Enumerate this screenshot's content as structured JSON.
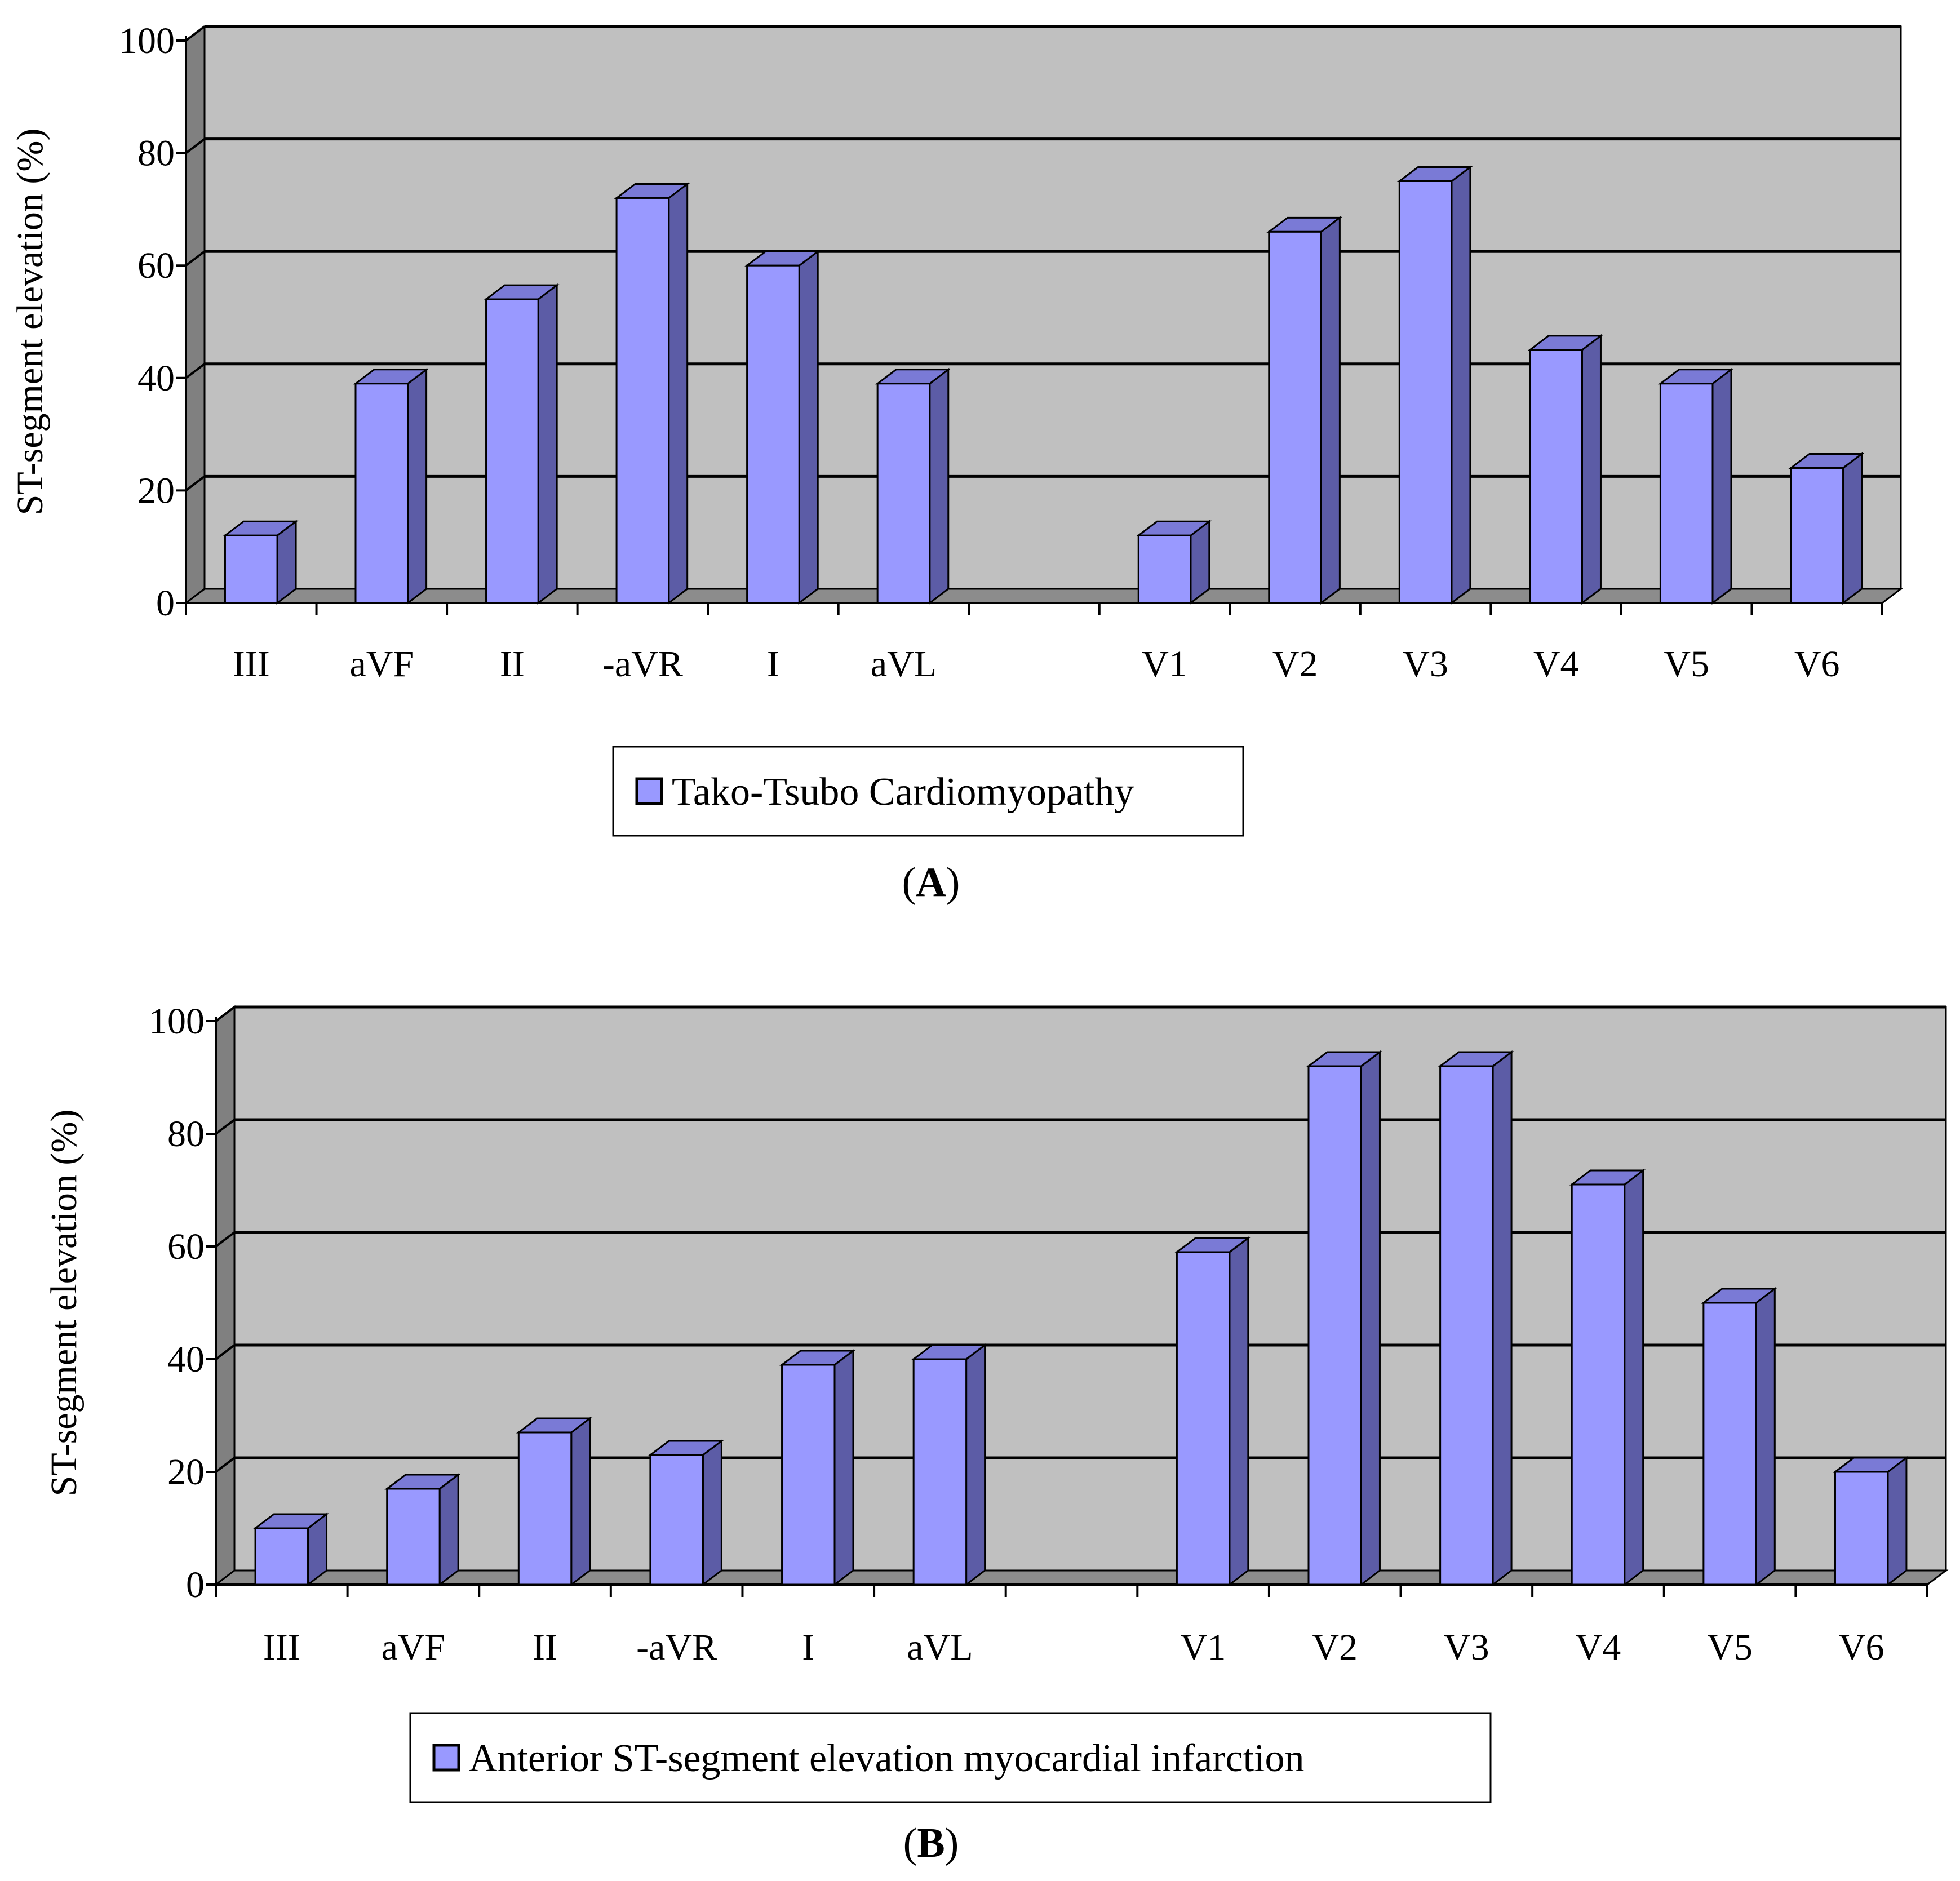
{
  "chart_data": [
    {
      "type": "bar",
      "panel": "A",
      "panel_label": {
        "open": "(",
        "letter": "A",
        "close": ")"
      },
      "categories": [
        "III",
        "aVF",
        "II",
        "-aVR",
        "I",
        "aVL",
        "",
        "V1",
        "V2",
        "V3",
        "V4",
        "V5",
        "V6"
      ],
      "series": [
        {
          "name": "Tako-Tsubo Cardiomyopathy",
          "values": [
            12,
            39,
            54,
            72,
            60,
            39,
            null,
            12,
            66,
            75,
            45,
            39,
            24
          ]
        }
      ],
      "ylabel": "ST-segment elevation (%)",
      "ylim": [
        0,
        100
      ],
      "yticks": [
        0,
        20,
        40,
        60,
        80,
        100
      ],
      "grid": true,
      "legend_position": "bottom-center",
      "colors": {
        "bar_front": "#9999ff",
        "bar_side": "#5c5ca6",
        "bar_top": "#7a7ad6",
        "plot_wall": "#c0c0c0",
        "plot_side_wall": "#808080",
        "plot_floor": "#8c8c8c"
      }
    },
    {
      "type": "bar",
      "panel": "B",
      "panel_label": {
        "open": "(",
        "letter": "B",
        "close": ")"
      },
      "categories": [
        "III",
        "aVF",
        "II",
        "-aVR",
        "I",
        "aVL",
        "",
        "V1",
        "V2",
        "V3",
        "V4",
        "V5",
        "V6"
      ],
      "series": [
        {
          "name": "Anterior ST-segment elevation myocardial infarction",
          "values": [
            10,
            17,
            27,
            23,
            39,
            40,
            null,
            59,
            92,
            92,
            71,
            50,
            20
          ]
        }
      ],
      "ylabel": "ST-segment elevation (%)",
      "ylim": [
        0,
        100
      ],
      "yticks": [
        0,
        20,
        40,
        60,
        80,
        100
      ],
      "grid": true,
      "legend_position": "bottom-center",
      "colors": {
        "bar_front": "#9999ff",
        "bar_side": "#5c5ca6",
        "bar_top": "#7a7ad6",
        "plot_wall": "#c0c0c0",
        "plot_side_wall": "#808080",
        "plot_floor": "#8c8c8c"
      }
    }
  ]
}
